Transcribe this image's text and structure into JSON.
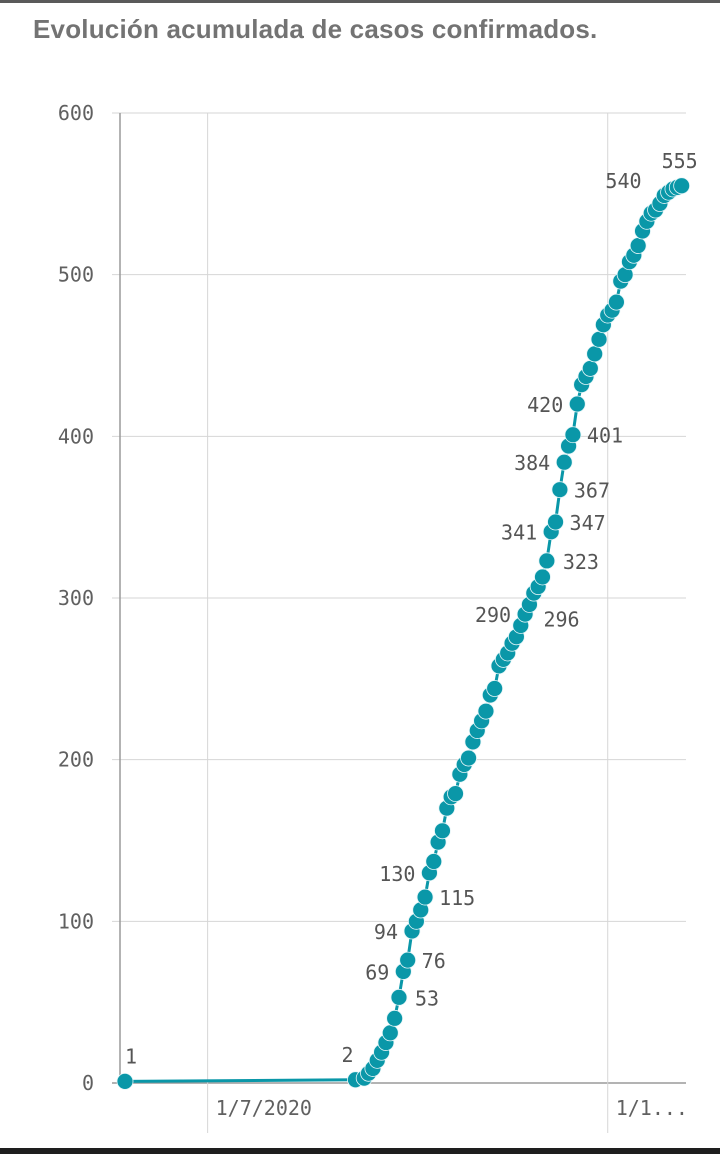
{
  "title": "Evolución acumulada de casos confirmados.",
  "colors": {
    "series": "#0a97a8",
    "grid": "#d6d6d6",
    "axis": "#9a9a9a",
    "text": "#606060"
  },
  "chart_data": {
    "type": "line",
    "title": "Evolución acumulada de casos confirmados.",
    "xlabel": "",
    "ylabel": "",
    "ylim": [
      0,
      600
    ],
    "yticks": [
      0,
      100,
      200,
      300,
      400,
      500,
      600
    ],
    "xticks": [
      {
        "x": "2020-07-01",
        "label": "1/7/2020"
      },
      {
        "x": "2020-10-01",
        "label": "1/1..."
      }
    ],
    "xlim": [
      "2020-06-12",
      "2020-10-19"
    ],
    "grid": true,
    "legend": "none",
    "series": [
      {
        "points": [
          [
            "2020-06-12",
            1,
            "1"
          ],
          [
            "2020-08-04",
            2,
            "2"
          ],
          [
            "2020-08-06",
            3
          ],
          [
            "2020-08-07",
            6
          ],
          [
            "2020-08-08",
            9
          ],
          [
            "2020-08-09",
            14
          ],
          [
            "2020-08-10",
            19
          ],
          [
            "2020-08-11",
            25
          ],
          [
            "2020-08-12",
            31
          ],
          [
            "2020-08-13",
            40
          ],
          [
            "2020-08-14",
            53,
            "53"
          ],
          [
            "2020-08-15",
            69,
            "69"
          ],
          [
            "2020-08-16",
            76,
            "76"
          ],
          [
            "2020-08-17",
            94,
            "94"
          ],
          [
            "2020-08-18",
            100
          ],
          [
            "2020-08-19",
            107
          ],
          [
            "2020-08-20",
            115,
            "115"
          ],
          [
            "2020-08-21",
            130,
            "130"
          ],
          [
            "2020-08-22",
            137
          ],
          [
            "2020-08-23",
            149
          ],
          [
            "2020-08-24",
            156
          ],
          [
            "2020-08-25",
            170
          ],
          [
            "2020-08-26",
            177
          ],
          [
            "2020-08-27",
            179
          ],
          [
            "2020-08-28",
            191
          ],
          [
            "2020-08-29",
            197
          ],
          [
            "2020-08-30",
            201
          ],
          [
            "2020-08-31",
            211
          ],
          [
            "2020-09-01",
            218
          ],
          [
            "2020-09-02",
            224
          ],
          [
            "2020-09-03",
            230
          ],
          [
            "2020-09-04",
            240
          ],
          [
            "2020-09-05",
            244
          ],
          [
            "2020-09-06",
            258
          ],
          [
            "2020-09-07",
            262
          ],
          [
            "2020-09-08",
            266
          ],
          [
            "2020-09-09",
            272
          ],
          [
            "2020-09-10",
            276
          ],
          [
            "2020-09-11",
            283
          ],
          [
            "2020-09-12",
            290,
            "290"
          ],
          [
            "2020-09-13",
            296,
            "296"
          ],
          [
            "2020-09-14",
            303
          ],
          [
            "2020-09-15",
            307
          ],
          [
            "2020-09-16",
            313
          ],
          [
            "2020-09-17",
            323,
            "323"
          ],
          [
            "2020-09-18",
            341,
            "341"
          ],
          [
            "2020-09-19",
            347,
            "347"
          ],
          [
            "2020-09-20",
            367,
            "367"
          ],
          [
            "2020-09-21",
            384,
            "384"
          ],
          [
            "2020-09-22",
            394
          ],
          [
            "2020-09-23",
            401,
            "401"
          ],
          [
            "2020-09-24",
            420,
            "420"
          ],
          [
            "2020-09-25",
            432
          ],
          [
            "2020-09-26",
            437
          ],
          [
            "2020-09-27",
            442
          ],
          [
            "2020-09-28",
            451
          ],
          [
            "2020-09-29",
            460
          ],
          [
            "2020-09-30",
            469
          ],
          [
            "2020-10-01",
            475
          ],
          [
            "2020-10-02",
            478
          ],
          [
            "2020-10-03",
            483
          ],
          [
            "2020-10-04",
            496
          ],
          [
            "2020-10-05",
            500
          ],
          [
            "2020-10-06",
            508
          ],
          [
            "2020-10-07",
            512
          ],
          [
            "2020-10-08",
            518
          ],
          [
            "2020-10-09",
            527
          ],
          [
            "2020-10-10",
            533
          ],
          [
            "2020-10-11",
            538
          ],
          [
            "2020-10-12",
            540,
            "540"
          ],
          [
            "2020-10-13",
            544
          ],
          [
            "2020-10-14",
            549
          ],
          [
            "2020-10-15",
            551
          ],
          [
            "2020-10-16",
            553
          ],
          [
            "2020-10-17",
            554
          ],
          [
            "2020-10-18",
            555,
            "555"
          ]
        ]
      }
    ]
  }
}
